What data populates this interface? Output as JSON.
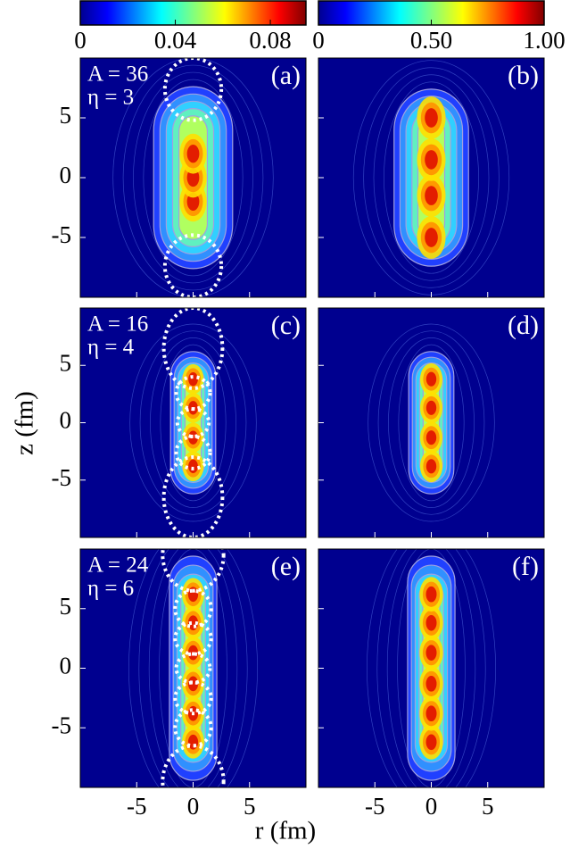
{
  "chart_data": {
    "type": "heatmap",
    "colorbars": [
      {
        "lim": [
          0,
          0.095
        ],
        "ticks": [
          0,
          0.04,
          0.08
        ]
      },
      {
        "lim": [
          0,
          1
        ],
        "ticks": [
          0,
          {
            "value": 0.5,
            "label": "0.50"
          },
          {
            "value": 1,
            "label": "1.00"
          }
        ]
      }
    ],
    "xlabel": "r (fm)",
    "ylabel": "z (fm)",
    "xlim": [
      -10,
      10
    ],
    "ylim": [
      -10,
      10
    ],
    "xticks": [
      -5,
      0,
      5
    ],
    "yticks": [
      -5,
      0,
      5
    ],
    "panels": [
      {
        "label": "(a)",
        "annotation": [
          "A = 36",
          "η = 3"
        ]
      },
      {
        "label": "(b)"
      },
      {
        "label": "(c)",
        "annotation": [
          "A = 16",
          "η = 4"
        ]
      },
      {
        "label": "(d)"
      },
      {
        "label": "(e)",
        "annotation": [
          "A = 24",
          "η = 6"
        ]
      },
      {
        "label": "(f)"
      }
    ]
  }
}
